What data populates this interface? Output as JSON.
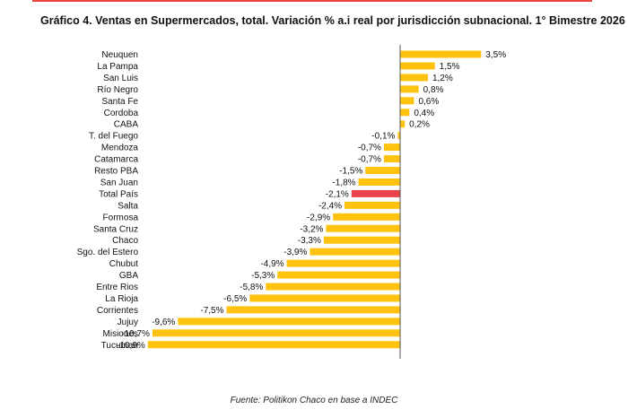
{
  "title": "Gráfico 4. Ventas en Supermercados, total. Variación % a.i real por jurisdicción subnacional. 1° Bimestre 2026",
  "source": "Fuente: Politikon Chaco en base a INDEC",
  "colors": {
    "bar": "#FFC20E",
    "highlight": "#E8434A",
    "axis": "#555555",
    "top_rule": "#E8443A"
  },
  "chart_data": {
    "type": "bar",
    "orientation": "horizontal",
    "title": "Gráfico 4. Ventas en Supermercados, total. Variación % a.i real por jurisdicción subnacional. 1° Bimestre 2026",
    "xlabel": "",
    "ylabel": "",
    "unit": "%",
    "highlight": "Total País",
    "categories": [
      "Neuquen",
      "La Pampa",
      "San Luis",
      "Río Negro",
      "Santa Fe",
      "Cordoba",
      "CABA",
      "T. del Fuego",
      "Mendoza",
      "Catamarca",
      "Resto PBA",
      "San Juan",
      "Total País",
      "Salta",
      "Formosa",
      "Santa Cruz",
      "Chaco",
      "Sgo. del Estero",
      "Chubut",
      "GBA",
      "Entre Rios",
      "La Rioja",
      "Corrientes",
      "Jujuy",
      "Misiones",
      "Tucuman"
    ],
    "values": [
      3.5,
      1.5,
      1.2,
      0.8,
      0.6,
      0.4,
      0.2,
      -0.1,
      -0.7,
      -0.7,
      -1.5,
      -1.8,
      -2.1,
      -2.4,
      -2.9,
      -3.2,
      -3.3,
      -3.9,
      -4.9,
      -5.3,
      -5.8,
      -6.5,
      -7.5,
      -9.6,
      -10.7,
      -10.9
    ],
    "value_labels": [
      "3,5%",
      "1,5%",
      "1,2%",
      "0,8%",
      "0,6%",
      "0,4%",
      "0,2%",
      "-0,1%",
      "-0,7%",
      "-0,7%",
      "-1,5%",
      "-1,8%",
      "-2,1%",
      "-2,4%",
      "-2,9%",
      "-3,2%",
      "-3,3%",
      "-3,9%",
      "-4,9%",
      "-5,3%",
      "-5,8%",
      "-6,5%",
      "-7,5%",
      "-9,6%",
      "-10,7%",
      "-10,9%"
    ],
    "xlim": [
      -11.0,
      3.6
    ],
    "grid": false
  }
}
